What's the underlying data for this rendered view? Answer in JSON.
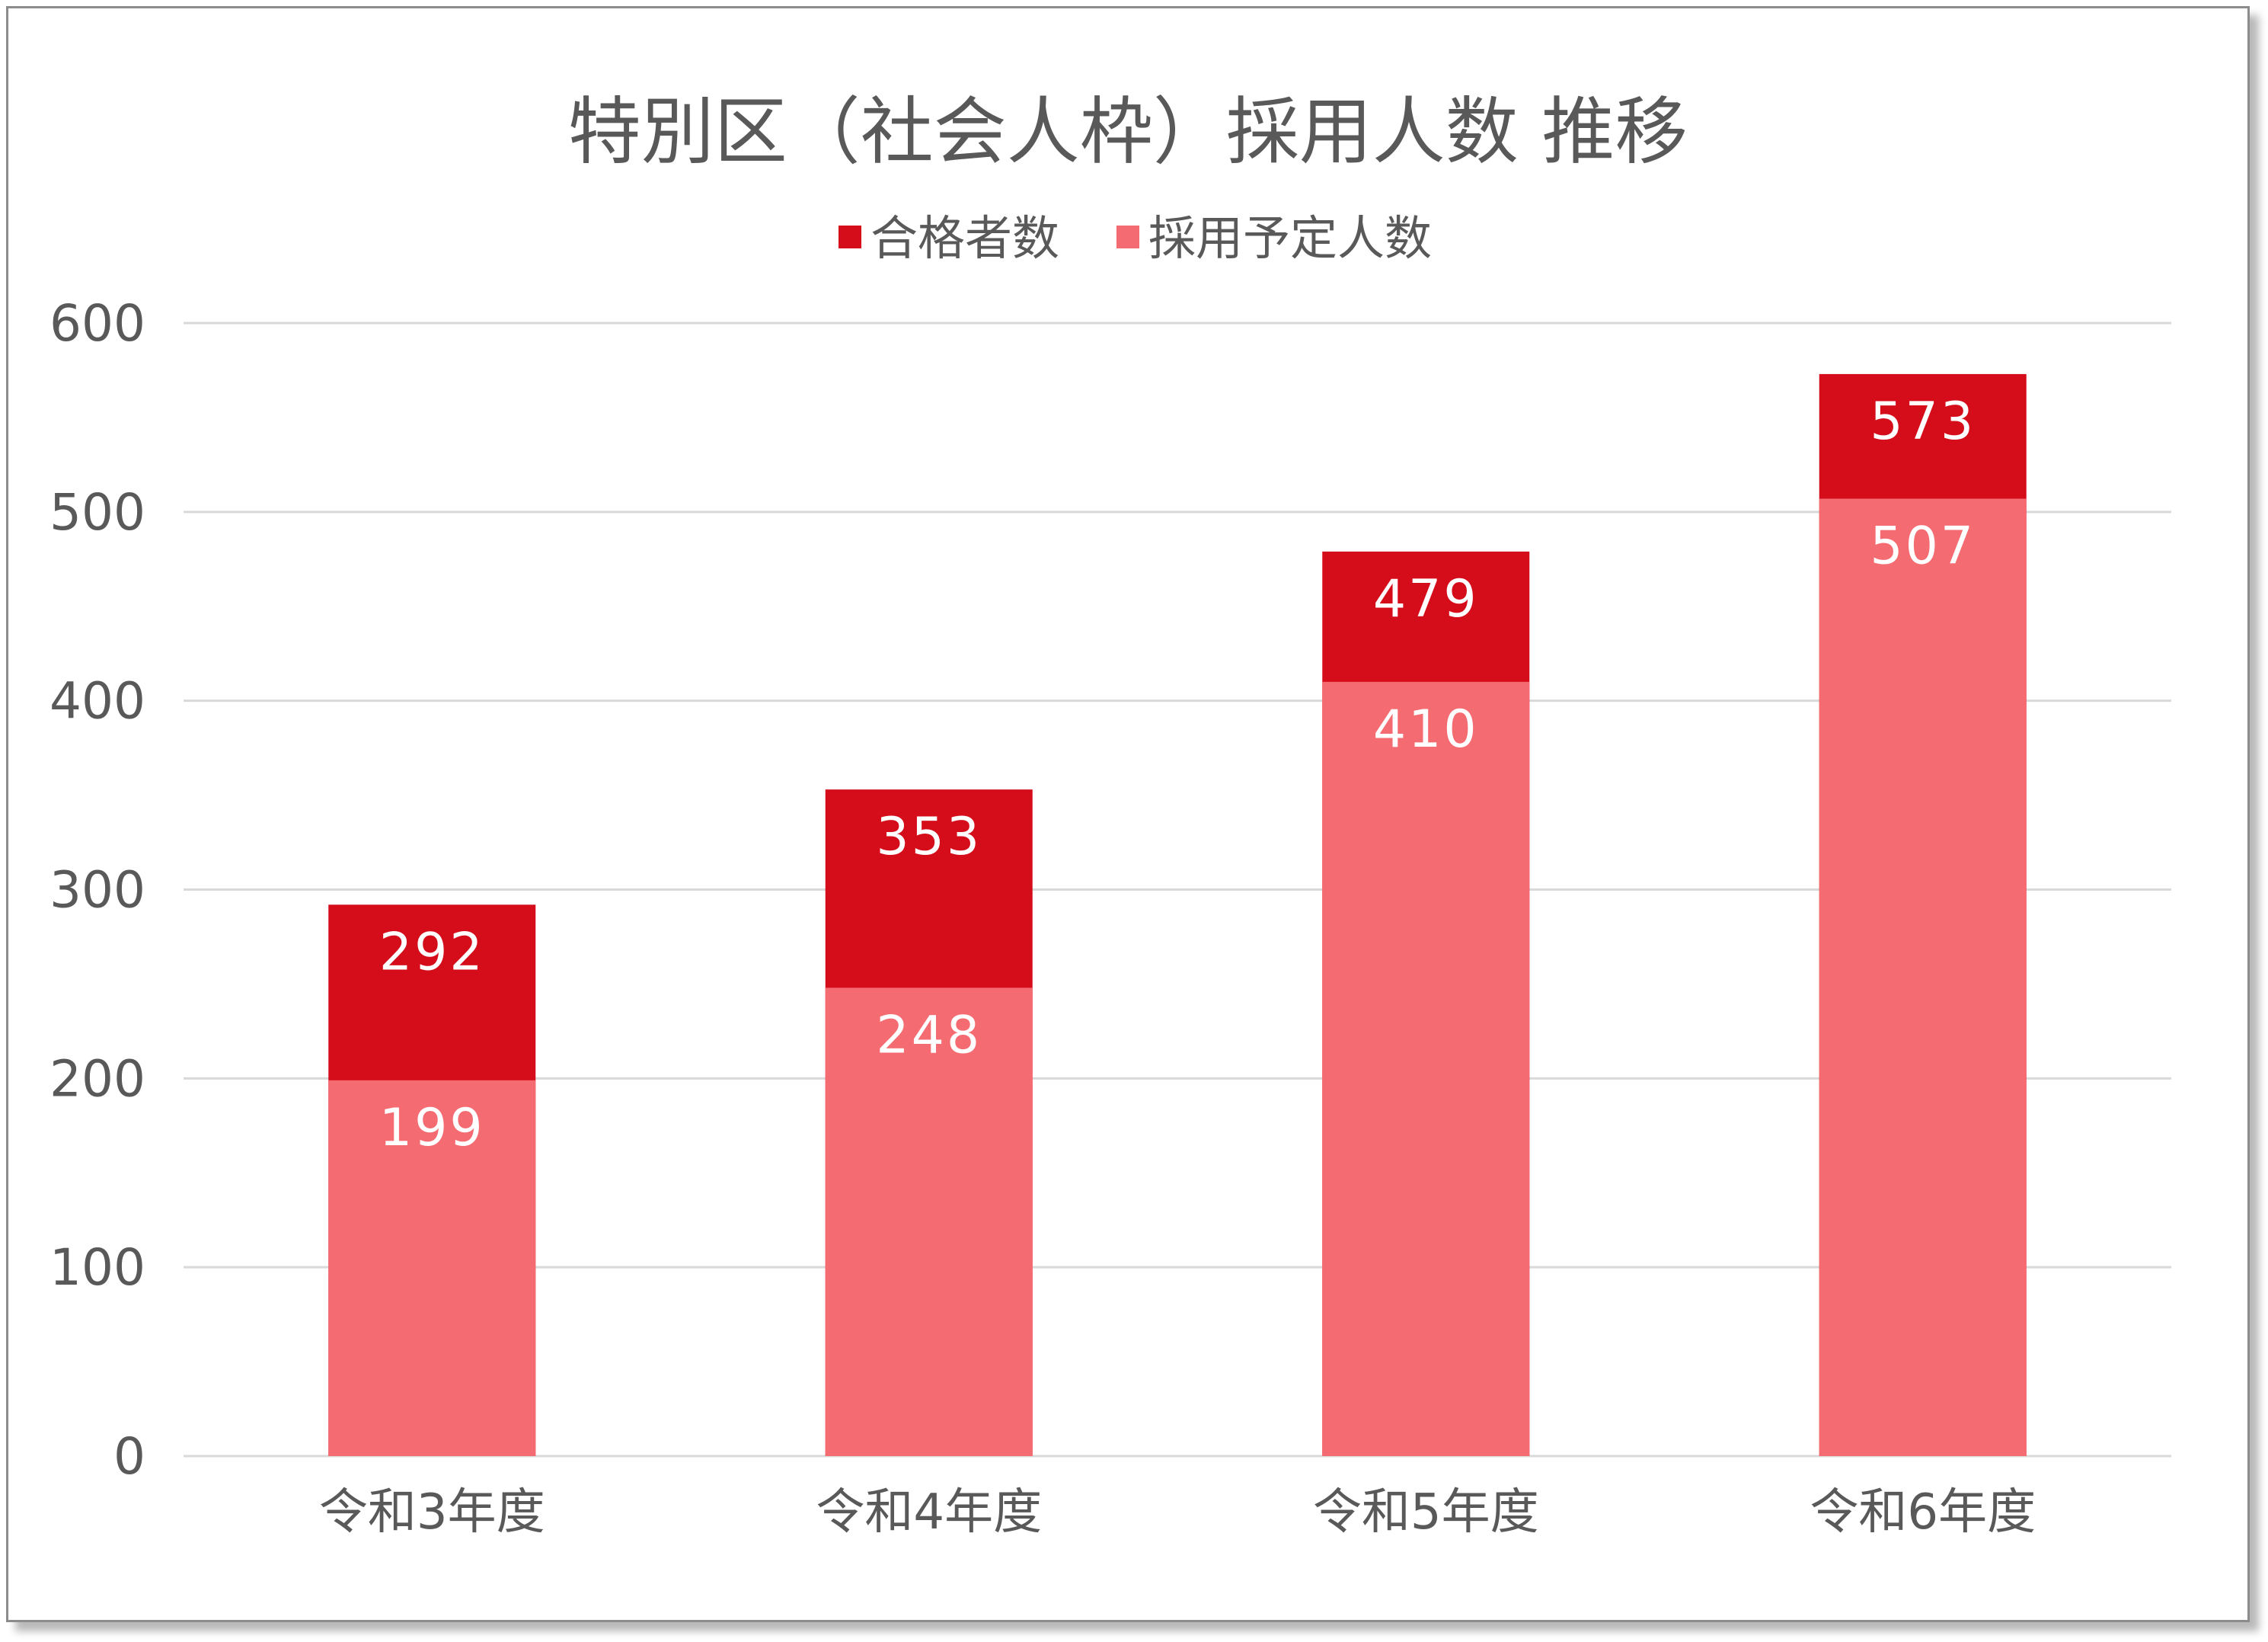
{
  "colors": {
    "passers": "#d50d1b",
    "planned": "#f56b72",
    "grid": "#d9d9d9",
    "text": "#595959",
    "label": "#ffffff"
  },
  "chart_data": {
    "type": "bar",
    "stacked_overlay": true,
    "title": "特別区（社会人枠）採用人数 推移",
    "xlabel": "",
    "ylabel": "",
    "categories": [
      "令和3年度",
      "令和4年度",
      "令和5年度",
      "令和6年度"
    ],
    "series": [
      {
        "name": "合格者数",
        "values": [
          292,
          353,
          479,
          573
        ],
        "color": "#d50d1b"
      },
      {
        "name": "採用予定人数",
        "values": [
          199,
          248,
          410,
          507
        ],
        "color": "#f56b72"
      }
    ],
    "ylim": [
      0,
      600
    ],
    "yticks": [
      0,
      100,
      200,
      300,
      400,
      500,
      600
    ],
    "grid": true,
    "legend_position": "top-center",
    "data_labels": true
  }
}
